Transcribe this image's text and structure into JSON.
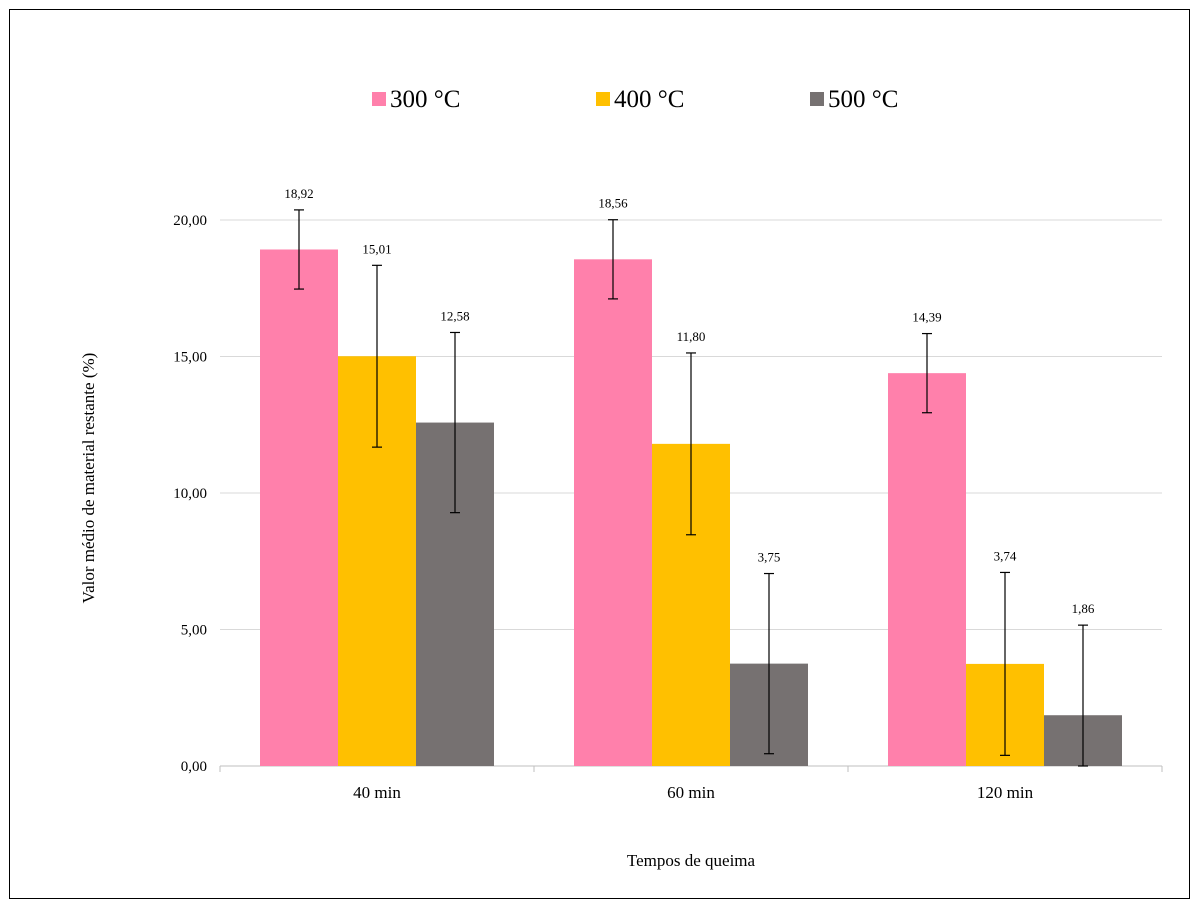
{
  "chart_data": {
    "type": "bar",
    "categories": [
      "40 min",
      "60 min",
      "120 min"
    ],
    "series": [
      {
        "name": "300 °C",
        "color": "#ff80ab",
        "values": [
          18.92,
          18.56,
          14.39
        ],
        "labels": [
          "18,92",
          "18,56",
          "14,39"
        ],
        "errors": [
          1.45,
          1.45,
          1.45
        ]
      },
      {
        "name": "400 °C",
        "color": "#ffc000",
        "values": [
          15.01,
          11.8,
          3.74
        ],
        "labels": [
          "15,01",
          "11,80",
          "3,74"
        ],
        "errors": [
          3.33,
          3.33,
          3.35
        ]
      },
      {
        "name": "500 °C",
        "color": "#767171",
        "values": [
          12.58,
          3.75,
          1.86
        ],
        "labels": [
          "12,58",
          "3,75",
          "1,86"
        ],
        "errors": [
          3.3,
          3.3,
          3.3
        ]
      }
    ],
    "xlabel": "Tempos de queima",
    "ylabel": "Valor médio de material  restante (%)",
    "ylim": [
      0,
      20
    ],
    "yticks": [
      0,
      5,
      10,
      15,
      20
    ],
    "ytick_labels": [
      "0,00",
      "5,00",
      "10,00",
      "15,00",
      "20,00"
    ],
    "grid": true,
    "legend_position": "top",
    "gridline_color": "#d9d9d9",
    "errorbar_color": "#000000"
  }
}
